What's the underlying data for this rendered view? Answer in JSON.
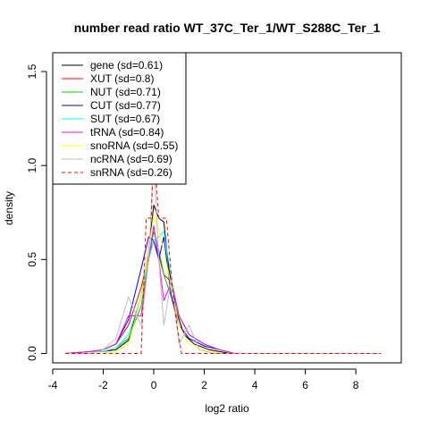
{
  "chart_data": {
    "type": "line",
    "title": "number read ratio WT_37C_Ter_1/WT_S288C_Ter_1",
    "xlabel": "log2 ratio",
    "ylabel": "density",
    "xlim": [
      -4.0,
      9.8
    ],
    "ylim": [
      -0.05,
      1.6
    ],
    "xticks": [
      -4,
      -2,
      0,
      2,
      4,
      6,
      8
    ],
    "yticks": [
      0.0,
      0.5,
      1.0,
      1.5
    ],
    "legend_position": "top-left",
    "grid": false,
    "series": [
      {
        "name": "gene (sd=0.61)",
        "color": "#000000",
        "dash": false,
        "x": [
          -3.5,
          -2.5,
          -2.0,
          -1.5,
          -1.0,
          -0.5,
          -0.2,
          0.0,
          0.2,
          0.4,
          0.6,
          0.9,
          1.2,
          1.6,
          2.2,
          3.0,
          9.0
        ],
        "y": [
          0.0,
          0.01,
          0.01,
          0.02,
          0.07,
          0.3,
          0.55,
          0.79,
          0.72,
          0.7,
          0.45,
          0.22,
          0.1,
          0.05,
          0.02,
          0.0,
          0.0
        ]
      },
      {
        "name": "XUT (sd=0.8)",
        "color": "#ff0000",
        "dash": false,
        "x": [
          -3.5,
          -2.5,
          -2.0,
          -1.5,
          -1.0,
          -0.5,
          -0.2,
          0.0,
          0.2,
          0.4,
          0.7,
          1.0,
          1.4,
          2.0,
          2.6,
          3.2,
          9.0
        ],
        "y": [
          0.0,
          0.01,
          0.02,
          0.05,
          0.15,
          0.35,
          0.52,
          0.6,
          0.52,
          0.42,
          0.38,
          0.2,
          0.1,
          0.05,
          0.02,
          0.0,
          0.0
        ]
      },
      {
        "name": "NUT (sd=0.71)",
        "color": "#00cc00",
        "dash": false,
        "x": [
          -3.5,
          -2.5,
          -2.0,
          -1.5,
          -1.0,
          -0.5,
          -0.2,
          0.0,
          0.2,
          0.4,
          0.7,
          1.0,
          1.4,
          2.0,
          2.6,
          3.2,
          9.0
        ],
        "y": [
          0.0,
          0.01,
          0.01,
          0.03,
          0.08,
          0.25,
          0.5,
          0.65,
          0.55,
          0.42,
          0.3,
          0.2,
          0.1,
          0.05,
          0.02,
          0.0,
          0.0
        ]
      },
      {
        "name": "CUT (sd=0.77)",
        "color": "#0000ff",
        "dash": false,
        "x": [
          -3.5,
          -2.5,
          -2.0,
          -1.5,
          -1.0,
          -0.5,
          -0.2,
          0.0,
          0.2,
          0.4,
          0.7,
          1.0,
          1.4,
          2.0,
          2.6,
          3.2,
          9.0
        ],
        "y": [
          0.0,
          0.01,
          0.02,
          0.05,
          0.18,
          0.45,
          0.62,
          0.6,
          0.5,
          0.62,
          0.3,
          0.15,
          0.08,
          0.04,
          0.02,
          0.0,
          0.0
        ]
      },
      {
        "name": "SUT (sd=0.67)",
        "color": "#00ffff",
        "dash": false,
        "x": [
          -3.5,
          -2.5,
          -2.0,
          -1.5,
          -1.0,
          -0.5,
          -0.2,
          0.0,
          0.2,
          0.4,
          0.7,
          1.0,
          1.4,
          2.0,
          2.6,
          3.2,
          9.0
        ],
        "y": [
          0.0,
          0.01,
          0.01,
          0.03,
          0.1,
          0.3,
          0.5,
          0.6,
          0.62,
          0.65,
          0.4,
          0.2,
          0.1,
          0.05,
          0.02,
          0.0,
          0.0
        ]
      },
      {
        "name": "tRNA (sd=0.84)",
        "color": "#ff00ff",
        "dash": false,
        "x": [
          -3.5,
          -2.5,
          -2.0,
          -1.5,
          -1.0,
          -0.5,
          -0.2,
          0.0,
          0.2,
          0.4,
          0.7,
          1.0,
          1.4,
          2.0,
          2.6,
          3.2,
          9.0
        ],
        "y": [
          0.0,
          0.01,
          0.02,
          0.05,
          0.2,
          0.2,
          0.5,
          0.68,
          0.5,
          0.28,
          0.38,
          0.2,
          0.1,
          0.05,
          0.02,
          0.0,
          0.0
        ]
      },
      {
        "name": "snoRNA (sd=0.55)",
        "color": "#ffff00",
        "dash": false,
        "x": [
          -3.5,
          -2.5,
          -2.0,
          -1.5,
          -1.0,
          -0.5,
          -0.2,
          0.0,
          0.2,
          0.4,
          0.7,
          1.0,
          1.4,
          2.0,
          2.6,
          3.2,
          9.0
        ],
        "y": [
          0.0,
          0.0,
          0.0,
          0.01,
          0.05,
          0.3,
          0.55,
          0.74,
          0.65,
          0.55,
          0.35,
          0.15,
          0.05,
          0.02,
          0.0,
          0.0,
          0.0
        ]
      },
      {
        "name": "ncRNA (sd=0.69)",
        "color": "#bebebe",
        "dash": false,
        "x": [
          -3.5,
          -2.5,
          -2.0,
          -1.5,
          -1.0,
          -0.5,
          -0.2,
          0.0,
          0.2,
          0.4,
          0.7,
          1.0,
          1.4,
          1.8,
          2.4,
          3.0,
          9.0
        ],
        "y": [
          0.0,
          0.0,
          0.02,
          0.08,
          0.3,
          0.15,
          0.5,
          1.05,
          0.5,
          0.15,
          0.4,
          0.05,
          0.15,
          0.02,
          0.0,
          0.0,
          0.0
        ]
      },
      {
        "name": "snRNA (sd=0.26)",
        "color": "#ff0000",
        "dash": true,
        "x": [
          -3.5,
          -0.5,
          -0.3,
          -0.1,
          0.0,
          0.2,
          0.5,
          0.8,
          1.1,
          1.3,
          9.0
        ],
        "y": [
          0.0,
          0.0,
          0.72,
          0.72,
          1.1,
          0.72,
          0.72,
          0.25,
          0.0,
          0.0,
          0.0
        ]
      }
    ]
  }
}
